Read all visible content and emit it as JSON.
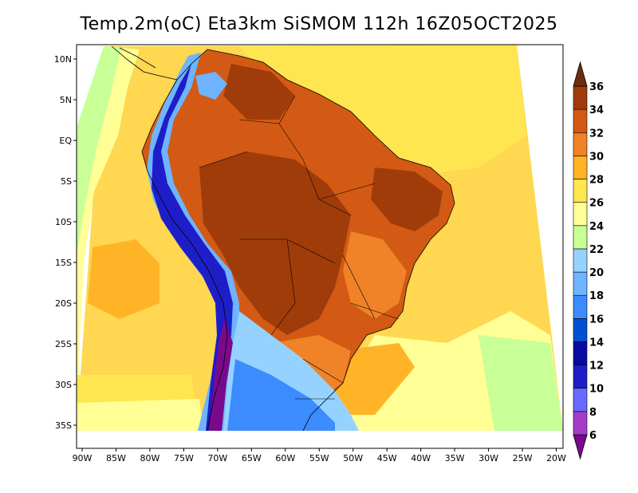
{
  "title": "Temp.2m(oC) Eta3km SiSMOM 112h 16Z05OCT2025",
  "lat_ticks": [
    {
      "lat": 10,
      "label": "10N"
    },
    {
      "lat": 5,
      "label": "5N"
    },
    {
      "lat": 0,
      "label": "EQ"
    },
    {
      "lat": -5,
      "label": "5S"
    },
    {
      "lat": -10,
      "label": "10S"
    },
    {
      "lat": -15,
      "label": "15S"
    },
    {
      "lat": -20,
      "label": "20S"
    },
    {
      "lat": -25,
      "label": "25S"
    },
    {
      "lat": -30,
      "label": "30S"
    },
    {
      "lat": -35,
      "label": "35S"
    }
  ],
  "lon_ticks": [
    {
      "lon": -90,
      "label": "90W"
    },
    {
      "lon": -85,
      "label": "85W"
    },
    {
      "lon": -80,
      "label": "80W"
    },
    {
      "lon": -75,
      "label": "75W"
    },
    {
      "lon": -70,
      "label": "70W"
    },
    {
      "lon": -65,
      "label": "65W"
    },
    {
      "lon": -60,
      "label": "60W"
    },
    {
      "lon": -55,
      "label": "55W"
    },
    {
      "lon": -50,
      "label": "50W"
    },
    {
      "lon": -45,
      "label": "45W"
    },
    {
      "lon": -40,
      "label": "40W"
    },
    {
      "lon": -35,
      "label": "35W"
    },
    {
      "lon": -30,
      "label": "30W"
    },
    {
      "lon": -25,
      "label": "25W"
    },
    {
      "lon": -20,
      "label": "20W"
    }
  ],
  "colorbar": {
    "unit": "oC",
    "levels": [
      6,
      8,
      10,
      12,
      14,
      16,
      18,
      20,
      22,
      24,
      26,
      28,
      30,
      32,
      34,
      36
    ],
    "colors": [
      "#7a0a8c",
      "#a53cc8",
      "#6a6aff",
      "#1e1ec8",
      "#0a0aa0",
      "#0050d2",
      "#3c8cff",
      "#6eb4ff",
      "#96d2ff",
      "#c8ff96",
      "#ffff96",
      "#ffe650",
      "#ffb428",
      "#f08228",
      "#d25a14",
      "#a03c0a",
      "#6e2d0a"
    ]
  }
}
